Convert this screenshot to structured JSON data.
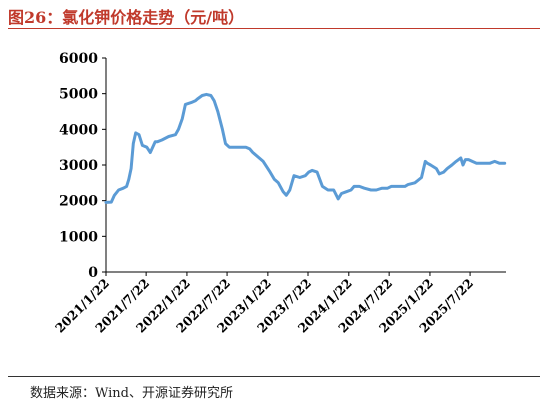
{
  "title": "图26：氯化钾价格走势（元/吨）",
  "source": "数据来源：Wind、开源证券研究所",
  "colors": {
    "line": "#5b9bd5",
    "title": "#c0392b",
    "axis": "#000000"
  },
  "chart_data": {
    "type": "line",
    "title": "图26：氯化钾价格走势（元/吨）",
    "xlabel": "",
    "ylabel": "",
    "ylim": [
      0,
      6000
    ],
    "yticks": [
      0,
      1000,
      2000,
      3000,
      4000,
      5000,
      6000
    ],
    "ytick_labels": [
      "0",
      "1000",
      "2000",
      "3000",
      "4000",
      "5000",
      "6000"
    ],
    "xlim": [
      "2021-01-22",
      "2025-12-31"
    ],
    "xticks": [
      "2021-01-22",
      "2021-07-22",
      "2022-01-22",
      "2022-07-22",
      "2023-01-22",
      "2023-07-22",
      "2024-01-22",
      "2024-07-22",
      "2025-01-22",
      "2025-07-22"
    ],
    "xtick_labels": [
      "2021/1/22",
      "2021/7/22",
      "2022/1/22",
      "2022/7/22",
      "2023/1/22",
      "2023/7/22",
      "2024/1/22",
      "2024/7/22",
      "2025/1/22",
      "2025/7/22"
    ],
    "grid": false,
    "legend": "none",
    "series": [
      {
        "color": "#5b9bd5",
        "x": [
          "2021-01-22",
          "2021-02-15",
          "2021-03-01",
          "2021-03-20",
          "2021-04-10",
          "2021-04-25",
          "2021-05-05",
          "2021-05-15",
          "2021-05-25",
          "2021-06-05",
          "2021-06-20",
          "2021-07-05",
          "2021-07-25",
          "2021-08-10",
          "2021-09-01",
          "2021-09-10",
          "2021-10-01",
          "2021-11-01",
          "2021-12-01",
          "2021-12-15",
          "2022-01-01",
          "2022-01-15",
          "2022-02-10",
          "2022-03-01",
          "2022-03-10",
          "2022-04-01",
          "2022-04-20",
          "2022-05-10",
          "2022-05-25",
          "2022-06-10",
          "2022-07-01",
          "2022-07-15",
          "2022-08-01",
          "2022-08-15",
          "2022-09-05",
          "2022-09-25",
          "2022-10-15",
          "2022-11-01",
          "2022-11-15",
          "2023-01-01",
          "2023-02-01",
          "2023-02-20",
          "2023-03-10",
          "2023-04-01",
          "2023-04-15",
          "2023-05-01",
          "2023-05-20",
          "2023-06-15",
          "2023-07-10",
          "2023-07-25",
          "2023-08-10",
          "2023-09-01",
          "2023-09-25",
          "2023-10-20",
          "2023-11-15",
          "2023-12-05",
          "2023-12-20",
          "2024-01-10",
          "2024-02-01",
          "2024-02-15",
          "2024-03-10",
          "2024-04-01",
          "2024-05-01",
          "2024-05-25",
          "2024-06-20",
          "2024-07-15",
          "2024-08-01",
          "2024-09-01",
          "2024-10-01",
          "2024-10-15",
          "2024-11-15",
          "2024-12-15",
          "2025-01-01",
          "2025-01-10",
          "2025-01-25",
          "2025-02-20",
          "2025-03-05",
          "2025-03-25",
          "2025-04-10",
          "2025-05-01",
          "2025-05-20",
          "2025-06-10",
          "2025-06-20",
          "2025-07-01",
          "2025-07-15",
          "2025-08-01",
          "2025-08-20",
          "2025-09-10",
          "2025-10-01",
          "2025-10-20",
          "2025-11-10",
          "2025-12-01",
          "2025-12-25"
        ],
        "y": [
          1950,
          1960,
          2150,
          2300,
          2350,
          2400,
          2600,
          2900,
          3600,
          3900,
          3850,
          3550,
          3500,
          3350,
          3650,
          3650,
          3700,
          3800,
          3850,
          4000,
          4300,
          4700,
          4750,
          4800,
          4850,
          4950,
          4980,
          4950,
          4800,
          4500,
          4000,
          3600,
          3500,
          3500,
          3500,
          3500,
          3500,
          3450,
          3350,
          3100,
          2800,
          2600,
          2500,
          2250,
          2150,
          2300,
          2700,
          2650,
          2700,
          2800,
          2850,
          2800,
          2400,
          2300,
          2300,
          2050,
          2200,
          2250,
          2300,
          2400,
          2400,
          2350,
          2300,
          2300,
          2350,
          2350,
          2400,
          2400,
          2400,
          2450,
          2500,
          2650,
          3100,
          3050,
          3000,
          2900,
          2750,
          2800,
          2900,
          3000,
          3100,
          3200,
          3000,
          3150,
          3150,
          3100,
          3050,
          3050,
          3050,
          3050,
          3100,
          3050,
          3050
        ]
      }
    ]
  }
}
